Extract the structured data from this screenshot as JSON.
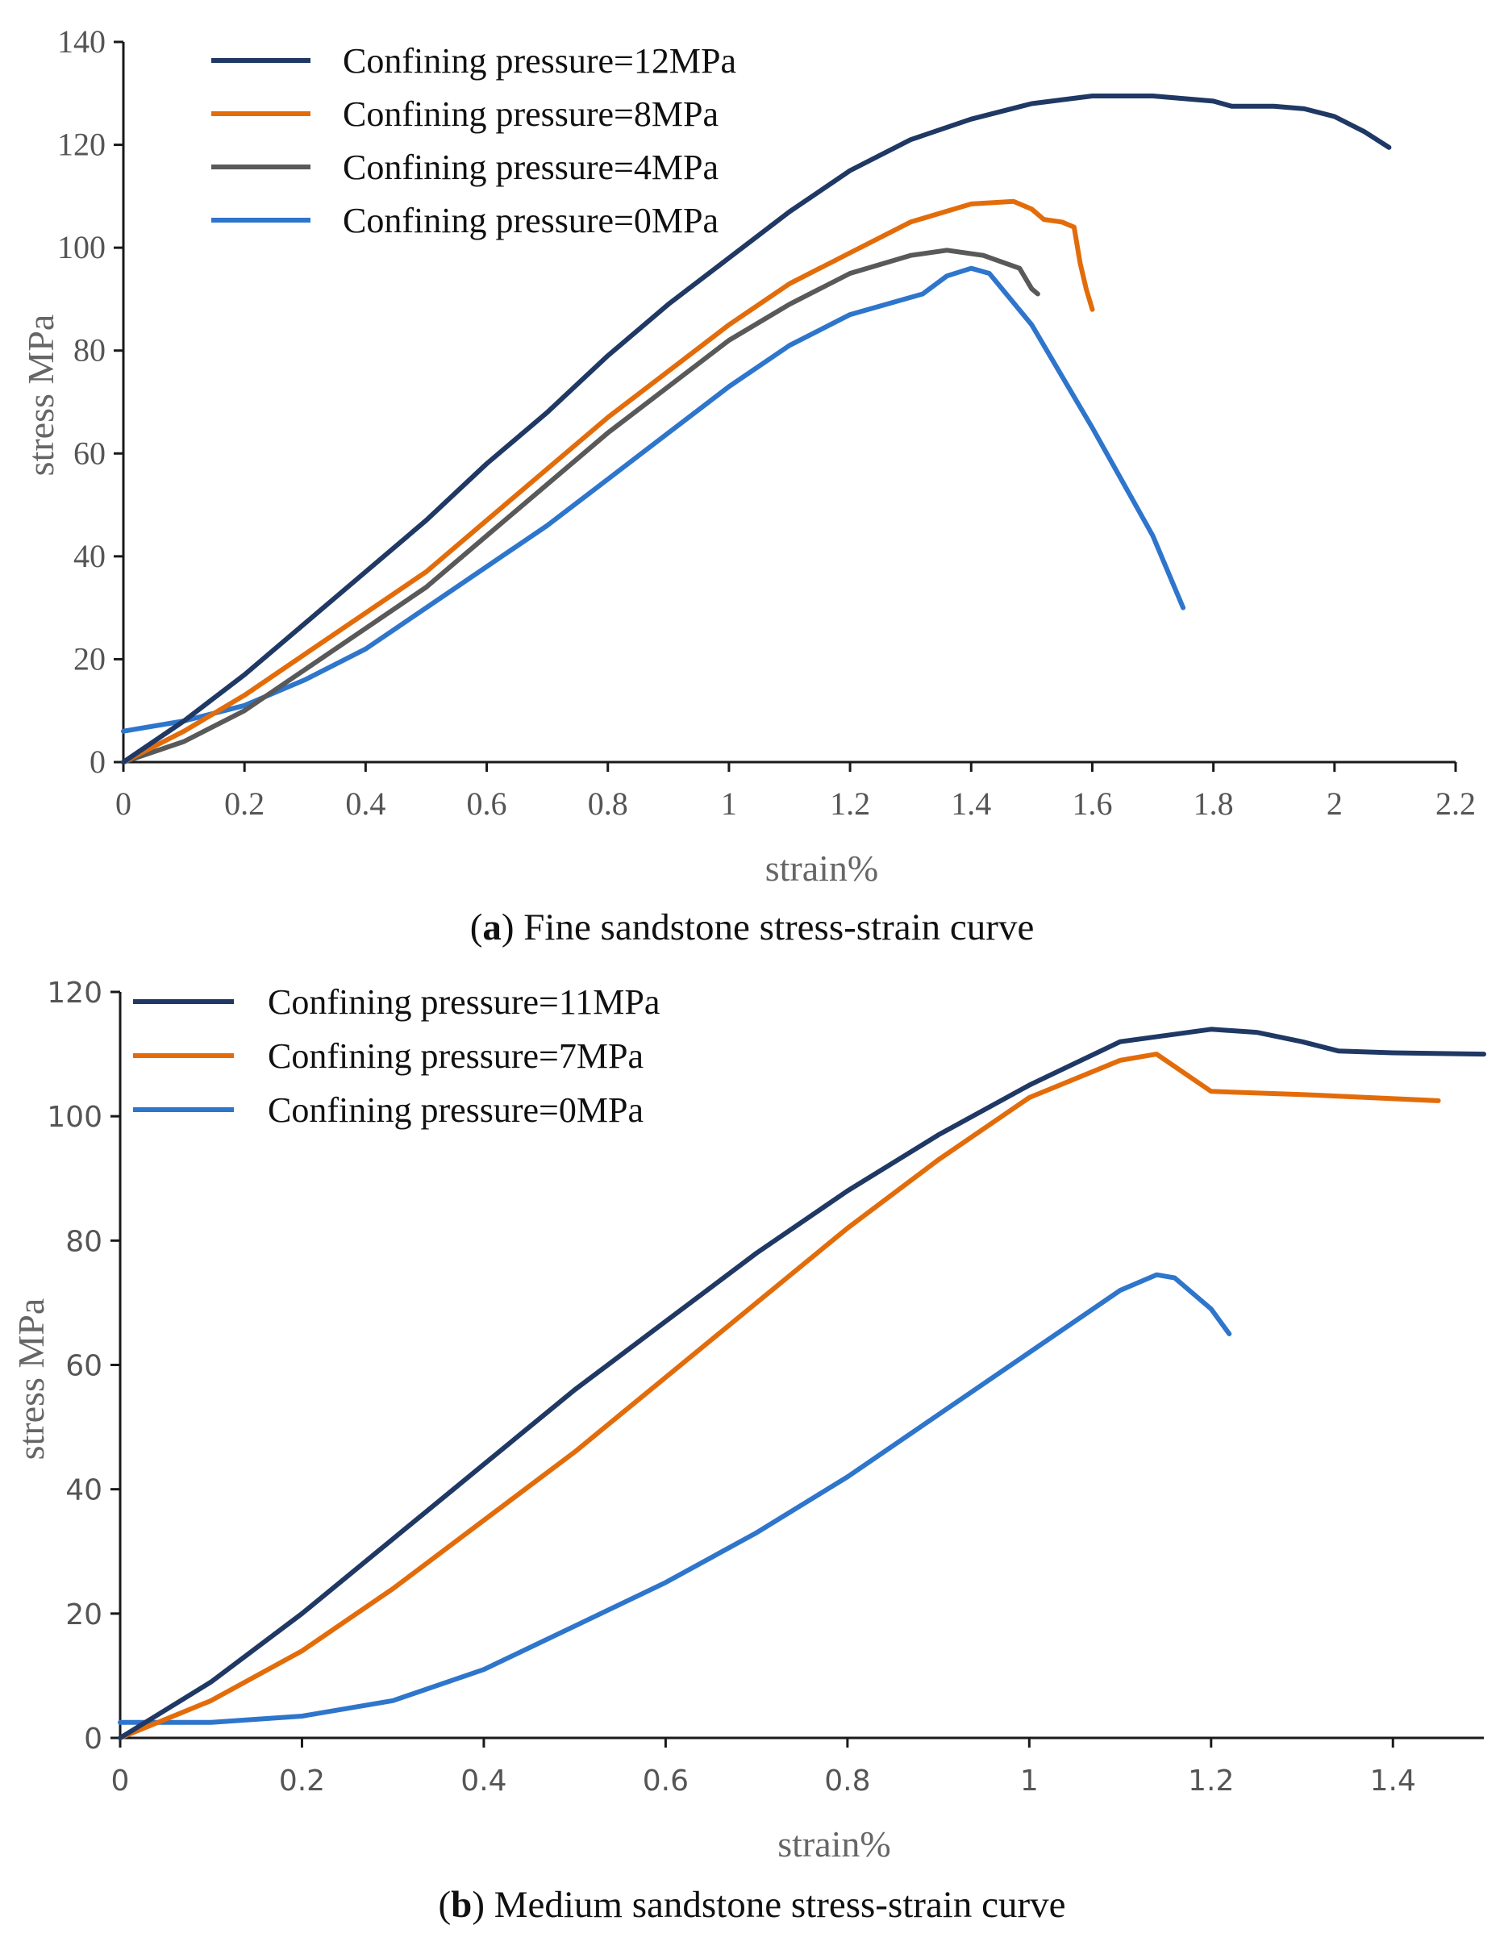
{
  "chart_data": [
    {
      "id": "a",
      "type": "line",
      "title": "Fine sandstone stress-strain curve",
      "caption_letter": "a",
      "xlabel": "strain%",
      "ylabel": "stress MPa",
      "xlim": [
        0,
        2.2
      ],
      "ylim": [
        0,
        140
      ],
      "xticks": [
        0,
        0.2,
        0.4,
        0.6,
        0.8,
        1,
        1.2,
        1.4,
        1.6,
        1.8,
        2,
        2.2
      ],
      "xtick_labels": [
        "0",
        "0.2",
        "0.4",
        "0.6",
        "0.8",
        "1",
        "1.2",
        "1.4",
        "1.6",
        "1.8",
        "2",
        "2.2"
      ],
      "yticks": [
        0,
        20,
        40,
        60,
        80,
        100,
        120,
        140
      ],
      "ytick_labels": [
        "0",
        "20",
        "40",
        "60",
        "80",
        "100",
        "120",
        "140"
      ],
      "grid": false,
      "legend_position": "top-left",
      "series": [
        {
          "name": "Confining pressure=12MPa",
          "color": "#1f3864",
          "x": [
            0,
            0.1,
            0.2,
            0.3,
            0.4,
            0.5,
            0.6,
            0.7,
            0.8,
            0.9,
            1.0,
            1.1,
            1.2,
            1.3,
            1.4,
            1.5,
            1.6,
            1.7,
            1.8,
            1.83,
            1.9,
            1.95,
            2.0,
            2.05,
            2.09
          ],
          "y": [
            0,
            8,
            17,
            27,
            37,
            47,
            58,
            68,
            79,
            89,
            98,
            107,
            115,
            121,
            125,
            128,
            129.5,
            129.5,
            128.5,
            127.5,
            127.5,
            127,
            125.5,
            122.5,
            119.5
          ]
        },
        {
          "name": "Confining pressure=8MPa",
          "color": "#e36c0a",
          "x": [
            0,
            0.1,
            0.2,
            0.3,
            0.4,
            0.5,
            0.6,
            0.7,
            0.8,
            0.9,
            1.0,
            1.1,
            1.2,
            1.3,
            1.4,
            1.47,
            1.5,
            1.52,
            1.55,
            1.57,
            1.58,
            1.59,
            1.6
          ],
          "y": [
            0,
            6,
            13,
            21,
            29,
            37,
            47,
            57,
            67,
            76,
            85,
            93,
            99,
            105,
            108.5,
            109,
            107.5,
            105.5,
            105,
            104,
            97,
            92,
            88
          ]
        },
        {
          "name": "Confining pressure=4MPa",
          "color": "#595959",
          "x": [
            0,
            0.1,
            0.2,
            0.3,
            0.4,
            0.5,
            0.6,
            0.7,
            0.8,
            0.9,
            1.0,
            1.1,
            1.2,
            1.3,
            1.36,
            1.42,
            1.48,
            1.5,
            1.51
          ],
          "y": [
            0,
            4,
            10,
            18,
            26,
            34,
            44,
            54,
            64,
            73,
            82,
            89,
            95,
            98.5,
            99.5,
            98.5,
            96,
            92,
            91
          ]
        },
        {
          "name": "Confining pressure=0MPa",
          "color": "#2e75cc",
          "x": [
            0,
            0.1,
            0.2,
            0.3,
            0.4,
            0.5,
            0.6,
            0.7,
            0.8,
            0.9,
            1.0,
            1.1,
            1.2,
            1.32,
            1.36,
            1.4,
            1.43,
            1.5,
            1.6,
            1.7,
            1.75
          ],
          "y": [
            6,
            8,
            11,
            16,
            22,
            30,
            38,
            46,
            55,
            64,
            73,
            81,
            87,
            91,
            94.5,
            96,
            95,
            85,
            65,
            44,
            30
          ]
        }
      ]
    },
    {
      "id": "b",
      "type": "line",
      "title": "Medium sandstone stress-strain curve",
      "caption_letter": "b",
      "xlabel": "strain%",
      "ylabel": "stress MPa",
      "xlim": [
        0,
        1.5
      ],
      "ylim": [
        0,
        120
      ],
      "xticks": [
        0,
        0.2,
        0.4,
        0.6,
        0.8,
        1,
        1.2,
        1.4
      ],
      "xtick_labels": [
        "0",
        "0.2",
        "0.4",
        "0.6",
        "0.8",
        "1",
        "1.2",
        "1.4"
      ],
      "yticks": [
        0,
        20,
        40,
        60,
        80,
        100,
        120
      ],
      "ytick_labels": [
        "0",
        "20",
        "40",
        "60",
        "80",
        "100",
        "120"
      ],
      "grid": false,
      "legend_position": "top-left",
      "series": [
        {
          "name": "Confining pressure=11MPa",
          "color": "#1f3864",
          "x": [
            0,
            0.1,
            0.2,
            0.3,
            0.4,
            0.5,
            0.6,
            0.7,
            0.8,
            0.9,
            1.0,
            1.1,
            1.2,
            1.25,
            1.3,
            1.34,
            1.4,
            1.5
          ],
          "y": [
            0,
            9,
            20,
            32,
            44,
            56,
            67,
            78,
            88,
            97,
            105,
            112,
            114,
            113.5,
            112,
            110.5,
            110.2,
            110
          ]
        },
        {
          "name": "Confining pressure=7MPa",
          "color": "#e36c0a",
          "x": [
            0,
            0.1,
            0.2,
            0.3,
            0.4,
            0.5,
            0.6,
            0.7,
            0.8,
            0.9,
            1.0,
            1.1,
            1.14,
            1.16,
            1.2,
            1.3,
            1.45
          ],
          "y": [
            0,
            6,
            14,
            24,
            35,
            46,
            58,
            70,
            82,
            93,
            103,
            109,
            110,
            108,
            104,
            103.5,
            102.5
          ]
        },
        {
          "name": "Confining pressure=0MPa",
          "color": "#2e75cc",
          "x": [
            0,
            0.1,
            0.2,
            0.3,
            0.4,
            0.5,
            0.6,
            0.7,
            0.8,
            0.9,
            1.0,
            1.1,
            1.14,
            1.16,
            1.2,
            1.22
          ],
          "y": [
            2.5,
            2.5,
            3.5,
            6,
            11,
            18,
            25,
            33,
            42,
            52,
            62,
            72,
            74.5,
            74,
            69,
            65
          ]
        }
      ]
    }
  ]
}
